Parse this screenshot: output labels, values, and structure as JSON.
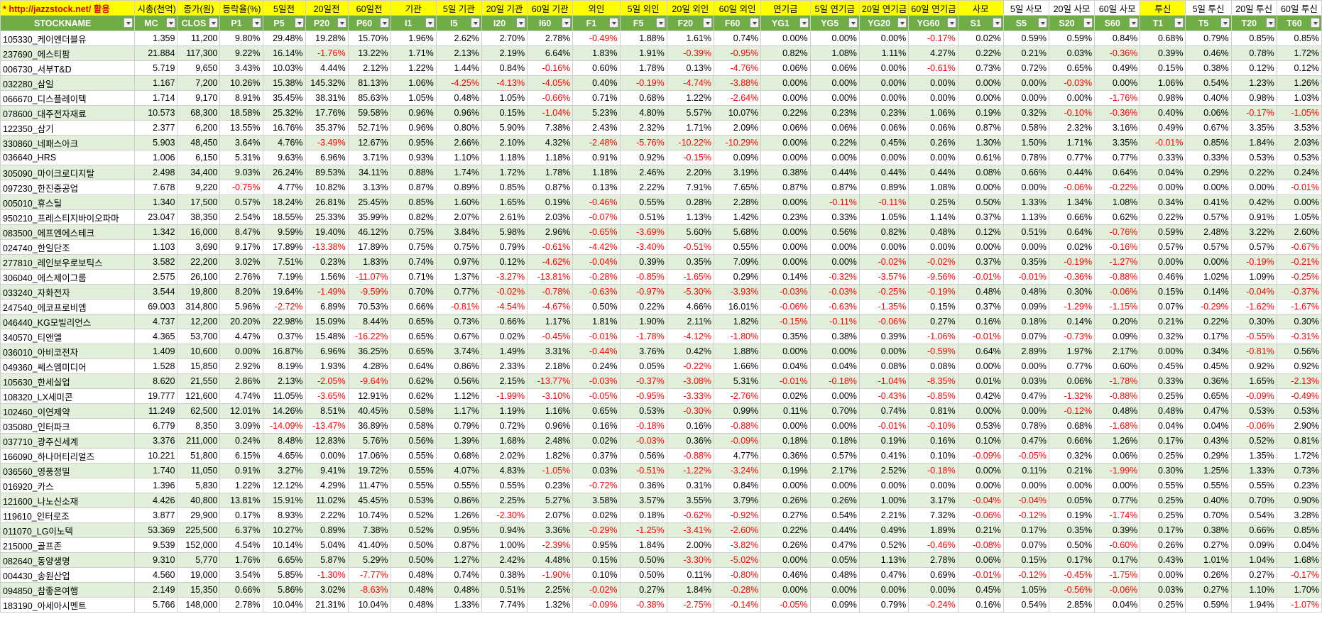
{
  "columns": [
    "STOCKNAME",
    "MC",
    "CLOS",
    "P1",
    "P5",
    "P20",
    "P60",
    "I1",
    "I5",
    "I20",
    "I60",
    "F1",
    "F5",
    "F20",
    "F60",
    "YG1",
    "YG5",
    "YG20",
    "YG60",
    "S1",
    "S5",
    "S20",
    "S60",
    "T1",
    "T5",
    "T20",
    "T60"
  ],
  "top_labels": [
    "* http://jazzstock.net/ 활용",
    "시총(천억)",
    "종가(원)",
    "등락율(%)",
    "5일전",
    "20일전",
    "60일전",
    "기관",
    "5일 기관",
    "20일 기관",
    "60일 기관",
    "외인",
    "5일 외인",
    "20일 외인",
    "60일 외인",
    "연기금",
    "5일 연기금",
    "20일 연기금",
    "60일 연기금",
    "사모",
    "5일 사모",
    "20일 사모",
    "60일 사모",
    "투신",
    "5일 투신",
    "20일 투신",
    "60일 투신"
  ],
  "rows": [
    [
      "105330_케이엔더블유",
      "1.359",
      "11,200",
      "9.80%",
      "29.48%",
      "19.28%",
      "15.70%",
      "1.96%",
      "2.62%",
      "2.70%",
      "2.78%",
      "-0.49%",
      "1.88%",
      "1.61%",
      "0.74%",
      "0.00%",
      "0.00%",
      "0.00%",
      "-0.17%",
      "0.02%",
      "0.59%",
      "0.59%",
      "0.84%",
      "0.68%",
      "0.79%",
      "0.85%",
      "0.85%"
    ],
    [
      "237690_에스티팜",
      "21.884",
      "117,300",
      "9.22%",
      "16.14%",
      "-1.76%",
      "13.22%",
      "1.71%",
      "2.13%",
      "2.19%",
      "6.64%",
      "1.83%",
      "1.91%",
      "-0.39%",
      "-0.95%",
      "0.82%",
      "1.08%",
      "1.11%",
      "4.27%",
      "0.22%",
      "0.21%",
      "0.03%",
      "-0.36%",
      "0.39%",
      "0.46%",
      "0.78%",
      "1.72%"
    ],
    [
      "006730_서부T&D",
      "5.719",
      "9,650",
      "3.43%",
      "10.03%",
      "4.44%",
      "2.12%",
      "1.22%",
      "1.44%",
      "0.84%",
      "-0.16%",
      "0.60%",
      "1.78%",
      "0.13%",
      "-4.76%",
      "0.06%",
      "0.06%",
      "0.00%",
      "-0.61%",
      "0.73%",
      "0.72%",
      "0.65%",
      "0.49%",
      "0.15%",
      "0.38%",
      "0.12%",
      "0.12%"
    ],
    [
      "032280_삼일",
      "1.167",
      "7,200",
      "10.26%",
      "15.38%",
      "145.32%",
      "81.13%",
      "1.06%",
      "-4.25%",
      "-4.13%",
      "-4.05%",
      "0.40%",
      "-0.19%",
      "-4.74%",
      "-3.88%",
      "0.00%",
      "0.00%",
      "0.00%",
      "0.00%",
      "0.00%",
      "0.00%",
      "-0.03%",
      "0.00%",
      "1.06%",
      "0.54%",
      "1.23%",
      "1.26%"
    ],
    [
      "066670_디스플레이텍",
      "1.714",
      "9,170",
      "8.91%",
      "35.45%",
      "38.31%",
      "85.63%",
      "1.05%",
      "0.48%",
      "1.05%",
      "-0.66%",
      "0.71%",
      "0.68%",
      "1.22%",
      "-2.64%",
      "0.00%",
      "0.00%",
      "0.00%",
      "0.00%",
      "0.00%",
      "0.00%",
      "0.00%",
      "-1.76%",
      "0.98%",
      "0.40%",
      "0.98%",
      "1.03%"
    ],
    [
      "078600_대주전자재료",
      "10.573",
      "68,300",
      "18.58%",
      "25.32%",
      "17.76%",
      "59.58%",
      "0.96%",
      "0.96%",
      "0.15%",
      "-1.04%",
      "5.23%",
      "4.80%",
      "5.57%",
      "10.07%",
      "0.22%",
      "0.23%",
      "0.23%",
      "1.06%",
      "0.19%",
      "0.32%",
      "-0.10%",
      "-0.36%",
      "0.40%",
      "0.06%",
      "-0.17%",
      "-1.05%"
    ],
    [
      "122350_삼기",
      "2.377",
      "6,200",
      "13.55%",
      "16.76%",
      "35.37%",
      "52.71%",
      "0.96%",
      "0.80%",
      "5.90%",
      "7.38%",
      "2.43%",
      "2.32%",
      "1.71%",
      "2.09%",
      "0.06%",
      "0.06%",
      "0.06%",
      "0.06%",
      "0.87%",
      "0.58%",
      "2.32%",
      "3.16%",
      "0.49%",
      "0.67%",
      "3.35%",
      "3.53%"
    ],
    [
      "330860_네패스아크",
      "5.903",
      "48,450",
      "3.64%",
      "4.76%",
      "-3.49%",
      "12.67%",
      "0.95%",
      "2.66%",
      "2.10%",
      "4.32%",
      "-2.48%",
      "-5.76%",
      "-10.22%",
      "-10.29%",
      "0.00%",
      "0.22%",
      "0.45%",
      "0.26%",
      "1.30%",
      "1.50%",
      "1.71%",
      "3.35%",
      "-0.01%",
      "0.85%",
      "1.84%",
      "2.03%"
    ],
    [
      "036640_HRS",
      "1.006",
      "6,150",
      "5.31%",
      "9.63%",
      "6.96%",
      "3.71%",
      "0.93%",
      "1.10%",
      "1.18%",
      "1.18%",
      "0.91%",
      "0.92%",
      "-0.15%",
      "0.09%",
      "0.00%",
      "0.00%",
      "0.00%",
      "0.00%",
      "0.61%",
      "0.78%",
      "0.77%",
      "0.77%",
      "0.33%",
      "0.33%",
      "0.53%",
      "0.53%"
    ],
    [
      "305090_마이크로디지탈",
      "2.498",
      "34,400",
      "9.03%",
      "26.24%",
      "89.53%",
      "34.11%",
      "0.88%",
      "1.74%",
      "1.72%",
      "1.78%",
      "1.18%",
      "2.46%",
      "2.20%",
      "3.19%",
      "0.38%",
      "0.44%",
      "0.44%",
      "0.44%",
      "0.08%",
      "0.66%",
      "0.44%",
      "0.64%",
      "0.04%",
      "0.29%",
      "0.22%",
      "0.24%"
    ],
    [
      "097230_한진중공업",
      "7.678",
      "9,220",
      "-0.75%",
      "4.77%",
      "10.82%",
      "3.13%",
      "0.87%",
      "0.89%",
      "0.85%",
      "0.87%",
      "0.13%",
      "2.22%",
      "7.91%",
      "7.65%",
      "0.87%",
      "0.87%",
      "0.89%",
      "1.08%",
      "0.00%",
      "0.00%",
      "-0.06%",
      "-0.22%",
      "0.00%",
      "0.00%",
      "0.00%",
      "-0.01%"
    ],
    [
      "005010_휴스틸",
      "1.340",
      "17,500",
      "0.57%",
      "18.24%",
      "26.81%",
      "25.45%",
      "0.85%",
      "1.60%",
      "1.65%",
      "0.19%",
      "-0.46%",
      "0.55%",
      "0.28%",
      "2.28%",
      "0.00%",
      "-0.11%",
      "-0.11%",
      "0.25%",
      "0.50%",
      "1.33%",
      "1.34%",
      "1.08%",
      "0.34%",
      "0.41%",
      "0.42%",
      "0.00%"
    ],
    [
      "950210_프레스티지바이오파마",
      "23.047",
      "38,350",
      "2.54%",
      "18.55%",
      "25.33%",
      "35.99%",
      "0.82%",
      "2.07%",
      "2.61%",
      "2.03%",
      "-0.07%",
      "0.51%",
      "1.13%",
      "1.42%",
      "0.23%",
      "0.33%",
      "1.05%",
      "1.14%",
      "0.37%",
      "1.13%",
      "0.66%",
      "0.62%",
      "0.22%",
      "0.57%",
      "0.91%",
      "1.05%"
    ],
    [
      "083500_에프엔에스테크",
      "1.342",
      "16,000",
      "8.47%",
      "9.59%",
      "19.40%",
      "46.12%",
      "0.75%",
      "3.84%",
      "5.98%",
      "2.96%",
      "-0.65%",
      "-3.69%",
      "5.60%",
      "5.68%",
      "0.00%",
      "0.56%",
      "0.82%",
      "0.48%",
      "0.12%",
      "0.51%",
      "0.64%",
      "-0.76%",
      "0.59%",
      "2.48%",
      "3.22%",
      "2.60%"
    ],
    [
      "024740_한일단조",
      "1.103",
      "3,690",
      "9.17%",
      "17.89%",
      "-13.38%",
      "17.89%",
      "0.75%",
      "0.75%",
      "0.79%",
      "-0.61%",
      "-4.42%",
      "-3.40%",
      "-0.51%",
      "0.55%",
      "0.00%",
      "0.00%",
      "0.00%",
      "0.00%",
      "0.00%",
      "0.00%",
      "0.02%",
      "-0.16%",
      "0.57%",
      "0.57%",
      "0.57%",
      "-0.67%"
    ],
    [
      "277810_레인보우로보틱스",
      "3.582",
      "22,200",
      "3.02%",
      "7.51%",
      "0.23%",
      "1.83%",
      "0.74%",
      "0.97%",
      "0.12%",
      "-4.62%",
      "-0.04%",
      "0.39%",
      "0.35%",
      "7.09%",
      "0.00%",
      "0.00%",
      "-0.02%",
      "-0.02%",
      "0.37%",
      "0.35%",
      "-0.19%",
      "-1.27%",
      "0.00%",
      "0.00%",
      "-0.19%",
      "-0.21%"
    ],
    [
      "306040_에스제이그룹",
      "2.575",
      "26,100",
      "2.76%",
      "7.19%",
      "1.56%",
      "-11.07%",
      "0.71%",
      "1.37%",
      "-3.27%",
      "-13.81%",
      "-0.28%",
      "-0.85%",
      "-1.65%",
      "0.29%",
      "0.14%",
      "-0.32%",
      "-3.57%",
      "-9.56%",
      "-0.01%",
      "-0.01%",
      "-0.36%",
      "-0.88%",
      "0.46%",
      "1.02%",
      "1.09%",
      "-0.25%"
    ],
    [
      "033240_자화전자",
      "3.544",
      "19,800",
      "8.20%",
      "19.64%",
      "-1.49%",
      "-9.59%",
      "0.70%",
      "0.77%",
      "-0.02%",
      "-0.78%",
      "-0.63%",
      "-0.97%",
      "-5.30%",
      "-3.93%",
      "-0.03%",
      "-0.03%",
      "-0.25%",
      "-0.19%",
      "0.48%",
      "0.48%",
      "0.30%",
      "-0.06%",
      "0.15%",
      "0.14%",
      "-0.04%",
      "-0.37%"
    ],
    [
      "247540_에코프로비엠",
      "69.003",
      "314,800",
      "5.96%",
      "-2.72%",
      "6.89%",
      "70.53%",
      "0.66%",
      "-0.81%",
      "-4.54%",
      "-4.67%",
      "0.50%",
      "0.22%",
      "4.66%",
      "16.01%",
      "-0.06%",
      "-0.63%",
      "-1.35%",
      "0.15%",
      "0.37%",
      "0.09%",
      "-1.29%",
      "-1.15%",
      "0.07%",
      "-0.29%",
      "-1.62%",
      "-1.67%"
    ],
    [
      "046440_KG모빌리언스",
      "4.737",
      "12,200",
      "20.20%",
      "22.98%",
      "15.09%",
      "8.44%",
      "0.65%",
      "0.73%",
      "0.66%",
      "1.17%",
      "1.81%",
      "1.90%",
      "2.11%",
      "1.82%",
      "-0.15%",
      "-0.11%",
      "-0.06%",
      "0.27%",
      "0.16%",
      "0.18%",
      "0.14%",
      "0.20%",
      "0.21%",
      "0.22%",
      "0.30%",
      "0.30%"
    ],
    [
      "340570_티앤엘",
      "4.365",
      "53,700",
      "4.47%",
      "0.37%",
      "15.48%",
      "-16.22%",
      "0.65%",
      "0.67%",
      "0.02%",
      "-0.45%",
      "-0.01%",
      "-1.78%",
      "-4.12%",
      "-1.80%",
      "0.35%",
      "0.38%",
      "0.39%",
      "-1.06%",
      "-0.01%",
      "0.07%",
      "-0.73%",
      "0.09%",
      "0.32%",
      "0.17%",
      "-0.55%",
      "-0.31%"
    ],
    [
      "036010_아비코전자",
      "1.409",
      "10,600",
      "0.00%",
      "16.87%",
      "6.96%",
      "36.25%",
      "0.65%",
      "3.74%",
      "1.49%",
      "3.31%",
      "-0.44%",
      "3.76%",
      "0.42%",
      "1.88%",
      "0.00%",
      "0.00%",
      "0.00%",
      "-0.59%",
      "0.64%",
      "2.89%",
      "1.97%",
      "2.17%",
      "0.00%",
      "0.34%",
      "-0.81%",
      "0.56%"
    ],
    [
      "049360_쎄스엠미디어",
      "1.528",
      "15,850",
      "2.92%",
      "8.19%",
      "1.93%",
      "4.28%",
      "0.64%",
      "0.86%",
      "2.33%",
      "2.18%",
      "0.24%",
      "0.05%",
      "-0.22%",
      "1.66%",
      "0.04%",
      "0.04%",
      "0.08%",
      "0.08%",
      "0.00%",
      "0.00%",
      "0.77%",
      "0.60%",
      "0.45%",
      "0.45%",
      "0.92%",
      "0.92%"
    ],
    [
      "105630_한세실업",
      "8.620",
      "21,550",
      "2.86%",
      "2.13%",
      "-2.05%",
      "-9.64%",
      "0.62%",
      "0.56%",
      "2.15%",
      "-13.77%",
      "-0.03%",
      "-0.37%",
      "-3.08%",
      "5.31%",
      "-0.01%",
      "-0.18%",
      "-1.04%",
      "-8.35%",
      "0.01%",
      "0.03%",
      "0.06%",
      "-1.78%",
      "0.33%",
      "0.36%",
      "1.65%",
      "-2.13%"
    ],
    [
      "108320_LX세미콘",
      "19.777",
      "121,600",
      "4.74%",
      "11.05%",
      "-3.65%",
      "12.91%",
      "0.62%",
      "1.12%",
      "-1.99%",
      "-3.10%",
      "-0.05%",
      "-0.95%",
      "-3.33%",
      "-2.76%",
      "0.02%",
      "0.00%",
      "-0.43%",
      "-0.85%",
      "0.42%",
      "0.47%",
      "-1.32%",
      "-0.88%",
      "0.25%",
      "0.65%",
      "-0.09%",
      "-0.49%"
    ],
    [
      "102460_이연제약",
      "11.249",
      "62,500",
      "12.01%",
      "14.26%",
      "8.51%",
      "40.45%",
      "0.58%",
      "1.17%",
      "1.19%",
      "1.16%",
      "0.65%",
      "0.53%",
      "-0.30%",
      "0.99%",
      "0.11%",
      "0.70%",
      "0.74%",
      "0.81%",
      "0.00%",
      "0.00%",
      "-0.12%",
      "0.48%",
      "0.48%",
      "0.47%",
      "0.53%",
      "0.53%"
    ],
    [
      "035080_인터파크",
      "6.779",
      "8,350",
      "3.09%",
      "-14.09%",
      "-13.47%",
      "36.89%",
      "0.58%",
      "0.79%",
      "0.72%",
      "0.96%",
      "0.16%",
      "-0.18%",
      "0.16%",
      "-0.88%",
      "0.00%",
      "0.00%",
      "-0.01%",
      "-0.10%",
      "0.53%",
      "0.78%",
      "0.68%",
      "-1.68%",
      "0.04%",
      "0.04%",
      "-0.06%",
      "2.90%"
    ],
    [
      "037710_광주신세계",
      "3.376",
      "211,000",
      "0.24%",
      "8.48%",
      "12.83%",
      "5.76%",
      "0.56%",
      "1.39%",
      "1.68%",
      "2.48%",
      "0.02%",
      "-0.03%",
      "0.36%",
      "-0.09%",
      "0.18%",
      "0.18%",
      "0.19%",
      "0.16%",
      "0.10%",
      "0.47%",
      "0.66%",
      "1.26%",
      "0.17%",
      "0.43%",
      "0.52%",
      "0.81%"
    ],
    [
      "166090_하나머티리얼즈",
      "10.221",
      "51,800",
      "6.15%",
      "4.65%",
      "0.00%",
      "17.06%",
      "0.55%",
      "0.68%",
      "2.02%",
      "1.82%",
      "0.37%",
      "0.56%",
      "-0.88%",
      "4.77%",
      "0.36%",
      "0.57%",
      "0.41%",
      "0.10%",
      "-0.09%",
      "-0.05%",
      "0.32%",
      "0.06%",
      "0.25%",
      "0.29%",
      "1.35%",
      "1.72%"
    ],
    [
      "036560_영풍정밀",
      "1.740",
      "11,050",
      "0.91%",
      "3.27%",
      "9.41%",
      "19.72%",
      "0.55%",
      "4.07%",
      "4.83%",
      "-1.05%",
      "0.03%",
      "-0.51%",
      "-1.22%",
      "-3.24%",
      "0.19%",
      "2.17%",
      "2.52%",
      "-0.18%",
      "0.00%",
      "0.11%",
      "0.21%",
      "-1.99%",
      "0.30%",
      "1.25%",
      "1.33%",
      "0.73%"
    ],
    [
      "016920_카스",
      "1.396",
      "5,830",
      "1.22%",
      "12.12%",
      "4.29%",
      "11.47%",
      "0.55%",
      "0.55%",
      "0.55%",
      "0.23%",
      "-0.72%",
      "0.36%",
      "0.31%",
      "0.84%",
      "0.00%",
      "0.00%",
      "0.00%",
      "0.00%",
      "0.00%",
      "0.00%",
      "0.00%",
      "0.00%",
      "0.55%",
      "0.55%",
      "0.55%",
      "0.23%"
    ],
    [
      "121600_나노신소재",
      "4.426",
      "40,800",
      "13.81%",
      "15.91%",
      "11.02%",
      "45.45%",
      "0.53%",
      "0.86%",
      "2.25%",
      "5.27%",
      "3.58%",
      "3.57%",
      "3.55%",
      "3.79%",
      "0.26%",
      "0.26%",
      "1.00%",
      "3.17%",
      "-0.04%",
      "-0.04%",
      "0.05%",
      "0.77%",
      "0.25%",
      "0.40%",
      "0.70%",
      "0.90%"
    ],
    [
      "119610_인터로조",
      "3.877",
      "29,900",
      "0.17%",
      "8.93%",
      "2.22%",
      "10.74%",
      "0.52%",
      "1.26%",
      "-2.30%",
      "2.07%",
      "0.02%",
      "0.18%",
      "-0.62%",
      "-0.92%",
      "0.27%",
      "0.54%",
      "2.21%",
      "7.32%",
      "-0.06%",
      "-0.12%",
      "0.19%",
      "-1.74%",
      "0.25%",
      "0.70%",
      "0.54%",
      "3.28%"
    ],
    [
      "011070_LG이노텍",
      "53.369",
      "225,500",
      "6.37%",
      "10.27%",
      "0.89%",
      "7.38%",
      "0.52%",
      "0.95%",
      "0.94%",
      "3.36%",
      "-0.29%",
      "-1.25%",
      "-3.41%",
      "-2.60%",
      "0.22%",
      "0.44%",
      "0.49%",
      "1.89%",
      "0.21%",
      "0.17%",
      "0.35%",
      "0.39%",
      "0.17%",
      "0.38%",
      "0.66%",
      "0.85%"
    ],
    [
      "215000_골프존",
      "9.539",
      "152,000",
      "4.54%",
      "10.14%",
      "5.04%",
      "41.40%",
      "0.50%",
      "0.87%",
      "1.00%",
      "-2.39%",
      "0.95%",
      "1.84%",
      "2.00%",
      "-3.82%",
      "0.26%",
      "0.47%",
      "0.52%",
      "-0.46%",
      "-0.08%",
      "0.07%",
      "0.50%",
      "-0.60%",
      "0.26%",
      "0.27%",
      "0.09%",
      "0.04%"
    ],
    [
      "082640_동양생명",
      "9.310",
      "5,770",
      "1.76%",
      "6.65%",
      "5.87%",
      "5.29%",
      "0.50%",
      "1.27%",
      "2.42%",
      "4.48%",
      "0.15%",
      "0.50%",
      "-3.30%",
      "-5.02%",
      "0.00%",
      "0.05%",
      "1.13%",
      "2.78%",
      "0.06%",
      "0.15%",
      "0.17%",
      "0.17%",
      "0.43%",
      "1.01%",
      "1.04%",
      "1.68%"
    ],
    [
      "004430_송원산업",
      "4.560",
      "19,000",
      "3.54%",
      "5.85%",
      "-1.30%",
      "-7.77%",
      "0.48%",
      "0.74%",
      "0.38%",
      "-1.90%",
      "0.10%",
      "0.50%",
      "0.11%",
      "-0.80%",
      "0.46%",
      "0.48%",
      "0.47%",
      "0.69%",
      "-0.01%",
      "-0.12%",
      "-0.45%",
      "-1.75%",
      "0.00%",
      "0.26%",
      "0.27%",
      "-0.17%"
    ],
    [
      "094850_참좋은여행",
      "2.149",
      "15,350",
      "0.66%",
      "5.86%",
      "3.02%",
      "-8.63%",
      "0.48%",
      "0.48%",
      "0.51%",
      "2.25%",
      "-0.02%",
      "0.27%",
      "1.84%",
      "-0.28%",
      "0.00%",
      "0.00%",
      "0.00%",
      "0.00%",
      "0.45%",
      "1.05%",
      "-0.56%",
      "-0.06%",
      "0.03%",
      "0.27%",
      "1.10%",
      "1.70%"
    ],
    [
      "183190_아세아시멘트",
      "5.766",
      "148,000",
      "2.78%",
      "10.04%",
      "21.31%",
      "10.04%",
      "0.48%",
      "1.33%",
      "7.74%",
      "1.32%",
      "-0.09%",
      "-0.38%",
      "-2.75%",
      "-0.14%",
      "-0.05%",
      "0.09%",
      "0.79%",
      "-0.24%",
      "0.16%",
      "0.54%",
      "2.85%",
      "0.04%",
      "0.25%",
      "0.59%",
      "1.94%",
      "-1.07%"
    ]
  ]
}
